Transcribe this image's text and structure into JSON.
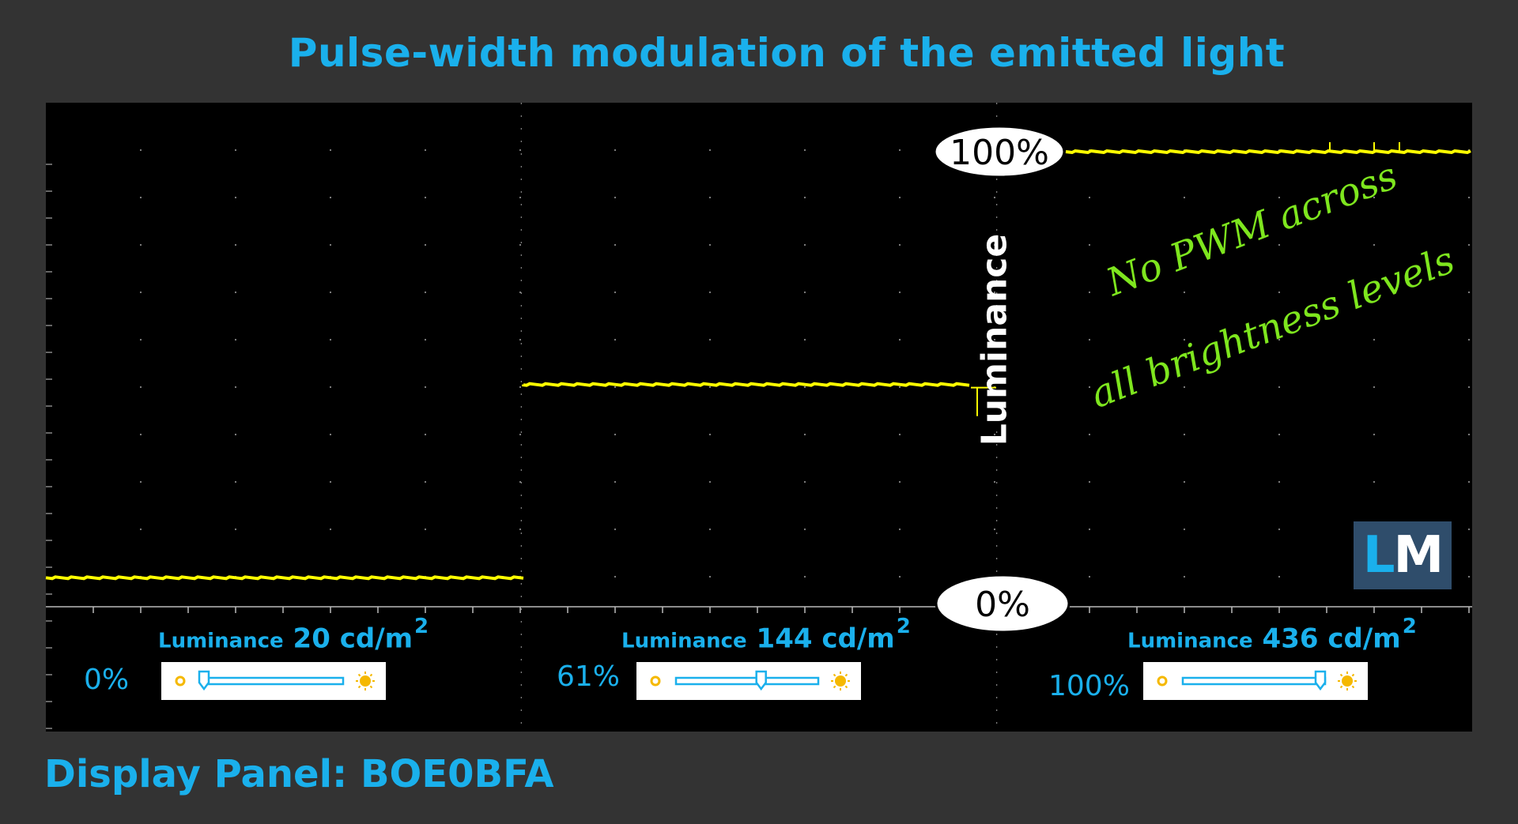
{
  "header": {
    "title": "Pulse-width modulation of the emitted light"
  },
  "footer": {
    "panel_label": "Display Panel: BOE0BFA"
  },
  "chart_data": {
    "type": "line",
    "title": "Pulse-width modulation of the emitted light",
    "ylabel": "Luminance",
    "ylim": [
      0,
      100
    ],
    "y_markers": [
      {
        "label": "100%",
        "value": 100
      },
      {
        "label": "0%",
        "value": 0
      }
    ],
    "annotation": [
      "No PWM across",
      "all brightness levels"
    ],
    "series": [
      {
        "brightness_setting": "0%",
        "luminance": "20 cd/m",
        "luminance_unit_exp": "2",
        "level": 3,
        "slider_position": 0.0
      },
      {
        "brightness_setting": "61%",
        "luminance": "144 cd/m",
        "luminance_unit_exp": "2",
        "level": 47,
        "slider_position": 0.61
      },
      {
        "brightness_setting": "100%",
        "luminance": "436 cd/m",
        "luminance_unit_exp": "2",
        "level": 100,
        "slider_position": 1.0
      }
    ],
    "grid": true,
    "colors": {
      "trace": "#ffff00",
      "background": "#000000",
      "grid": "#888888",
      "accent": "#1ab0ec",
      "note": "#7ee61e"
    }
  },
  "labels": {
    "luminance_word": "Luminance"
  },
  "logo": {
    "left_letter": "L",
    "right_letter": "M"
  }
}
